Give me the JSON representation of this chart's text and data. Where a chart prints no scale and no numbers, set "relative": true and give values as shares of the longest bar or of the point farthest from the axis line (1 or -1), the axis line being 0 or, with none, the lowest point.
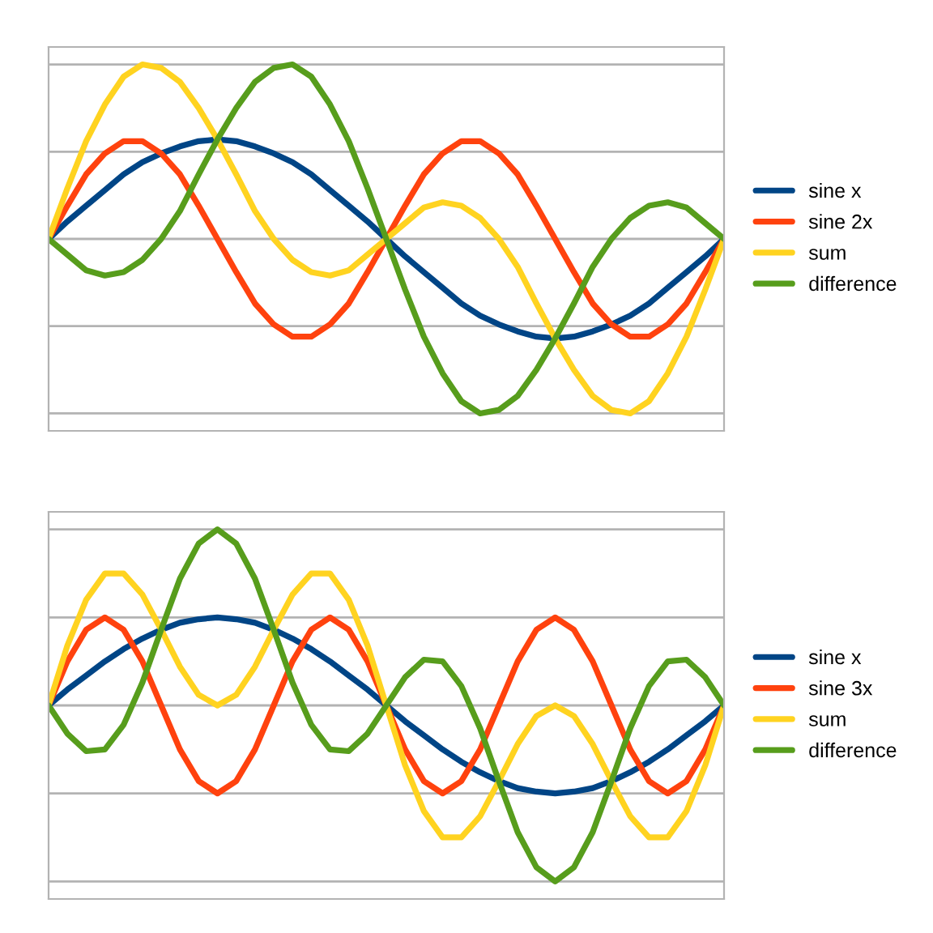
{
  "chart_data": [
    {
      "type": "line",
      "relative": true,
      "grid": "y",
      "legend": "right",
      "line_style": "solid",
      "marker": "none",
      "categories": [
        null,
        null,
        null,
        null,
        null,
        null,
        null,
        null,
        null,
        null,
        null,
        null,
        null,
        null,
        null,
        null,
        null,
        null,
        null,
        null,
        null,
        null,
        null,
        null,
        null,
        null,
        null,
        null,
        null,
        null,
        null,
        null,
        null,
        null,
        null,
        null,
        null
      ],
      "series": [
        {
          "name": "sine x",
          "color": "#004586",
          "values": [
            0,
            0.1,
            0.19,
            0.28,
            0.37,
            0.44,
            0.49,
            0.53,
            0.56,
            0.57,
            0.56,
            0.53,
            0.49,
            0.44,
            0.37,
            0.28,
            0.19,
            0.1,
            0,
            -0.1,
            -0.19,
            -0.28,
            -0.37,
            -0.44,
            -0.49,
            -0.53,
            -0.56,
            -0.57,
            -0.56,
            -0.53,
            -0.49,
            -0.44,
            -0.37,
            -0.28,
            -0.19,
            -0.1,
            0
          ]
        },
        {
          "name": "sine 2x",
          "color": "#ff420e",
          "values": [
            0,
            0.19,
            0.37,
            0.49,
            0.56,
            0.56,
            0.49,
            0.37,
            0.19,
            0,
            -0.19,
            -0.37,
            -0.49,
            -0.56,
            -0.56,
            -0.49,
            -0.37,
            -0.19,
            0,
            0.19,
            0.37,
            0.49,
            0.56,
            0.56,
            0.49,
            0.37,
            0.19,
            0,
            -0.19,
            -0.37,
            -0.49,
            -0.56,
            -0.56,
            -0.49,
            -0.37,
            -0.19,
            0
          ]
        },
        {
          "name": "sum",
          "color": "#ffd320",
          "values": [
            0,
            0.29,
            0.56,
            0.77,
            0.93,
            1.0,
            0.98,
            0.9,
            0.75,
            0.57,
            0.37,
            0.16,
            0,
            -0.12,
            -0.19,
            -0.21,
            -0.18,
            -0.09,
            0,
            0.09,
            0.18,
            0.21,
            0.19,
            0.12,
            0,
            -0.16,
            -0.37,
            -0.57,
            -0.75,
            -0.9,
            -0.98,
            -1.0,
            -0.93,
            -0.77,
            -0.56,
            -0.29,
            0
          ]
        },
        {
          "name": "difference",
          "color": "#579d1c",
          "values": [
            0,
            -0.09,
            -0.18,
            -0.21,
            -0.19,
            -0.12,
            0,
            0.16,
            0.37,
            0.57,
            0.75,
            0.9,
            0.98,
            1.0,
            0.93,
            0.77,
            0.56,
            0.29,
            0,
            -0.29,
            -0.56,
            -0.77,
            -0.93,
            -1.0,
            -0.98,
            -0.9,
            -0.75,
            -0.57,
            -0.37,
            -0.16,
            0,
            0.12,
            0.19,
            0.21,
            0.18,
            0.09,
            0
          ]
        }
      ]
    },
    {
      "type": "line",
      "relative": true,
      "grid": "y",
      "legend": "right",
      "line_style": "solid",
      "marker": "none",
      "categories": [
        null,
        null,
        null,
        null,
        null,
        null,
        null,
        null,
        null,
        null,
        null,
        null,
        null,
        null,
        null,
        null,
        null,
        null,
        null,
        null,
        null,
        null,
        null,
        null,
        null,
        null,
        null,
        null,
        null,
        null,
        null,
        null,
        null,
        null,
        null,
        null,
        null
      ],
      "series": [
        {
          "name": "sine x",
          "color": "#004586",
          "values": [
            0,
            0.09,
            0.17,
            0.25,
            0.32,
            0.38,
            0.43,
            0.47,
            0.49,
            0.5,
            0.49,
            0.47,
            0.43,
            0.38,
            0.32,
            0.25,
            0.17,
            0.09,
            0,
            -0.09,
            -0.17,
            -0.25,
            -0.32,
            -0.38,
            -0.43,
            -0.47,
            -0.49,
            -0.5,
            -0.49,
            -0.47,
            -0.43,
            -0.38,
            -0.32,
            -0.25,
            -0.17,
            -0.09,
            0
          ]
        },
        {
          "name": "sine 3x",
          "color": "#ff420e",
          "values": [
            0,
            0.25,
            0.43,
            0.5,
            0.43,
            0.25,
            0,
            -0.25,
            -0.43,
            -0.5,
            -0.43,
            -0.25,
            0,
            0.25,
            0.43,
            0.5,
            0.43,
            0.25,
            0,
            -0.25,
            -0.43,
            -0.5,
            -0.43,
            -0.25,
            0,
            0.25,
            0.43,
            0.5,
            0.43,
            0.25,
            0,
            -0.25,
            -0.43,
            -0.5,
            -0.43,
            -0.25,
            0
          ]
        },
        {
          "name": "sum",
          "color": "#ffd320",
          "values": [
            0,
            0.34,
            0.6,
            0.75,
            0.75,
            0.63,
            0.43,
            0.22,
            0.06,
            0,
            0.06,
            0.22,
            0.43,
            0.63,
            0.75,
            0.75,
            0.6,
            0.34,
            0,
            -0.34,
            -0.6,
            -0.75,
            -0.75,
            -0.63,
            -0.43,
            -0.22,
            -0.06,
            0,
            -0.06,
            -0.22,
            -0.43,
            -0.63,
            -0.75,
            -0.75,
            -0.6,
            -0.34,
            0
          ]
        },
        {
          "name": "difference",
          "color": "#579d1c",
          "values": [
            0,
            -0.16,
            -0.26,
            -0.25,
            -0.11,
            0.13,
            0.43,
            0.72,
            0.92,
            1.0,
            0.92,
            0.72,
            0.43,
            0.13,
            -0.11,
            -0.25,
            -0.26,
            -0.16,
            0,
            0.16,
            0.26,
            0.25,
            0.11,
            -0.13,
            -0.43,
            -0.72,
            -0.92,
            -1.0,
            -0.92,
            -0.72,
            -0.43,
            -0.13,
            0.11,
            0.25,
            0.26,
            0.16,
            0
          ]
        }
      ]
    }
  ]
}
